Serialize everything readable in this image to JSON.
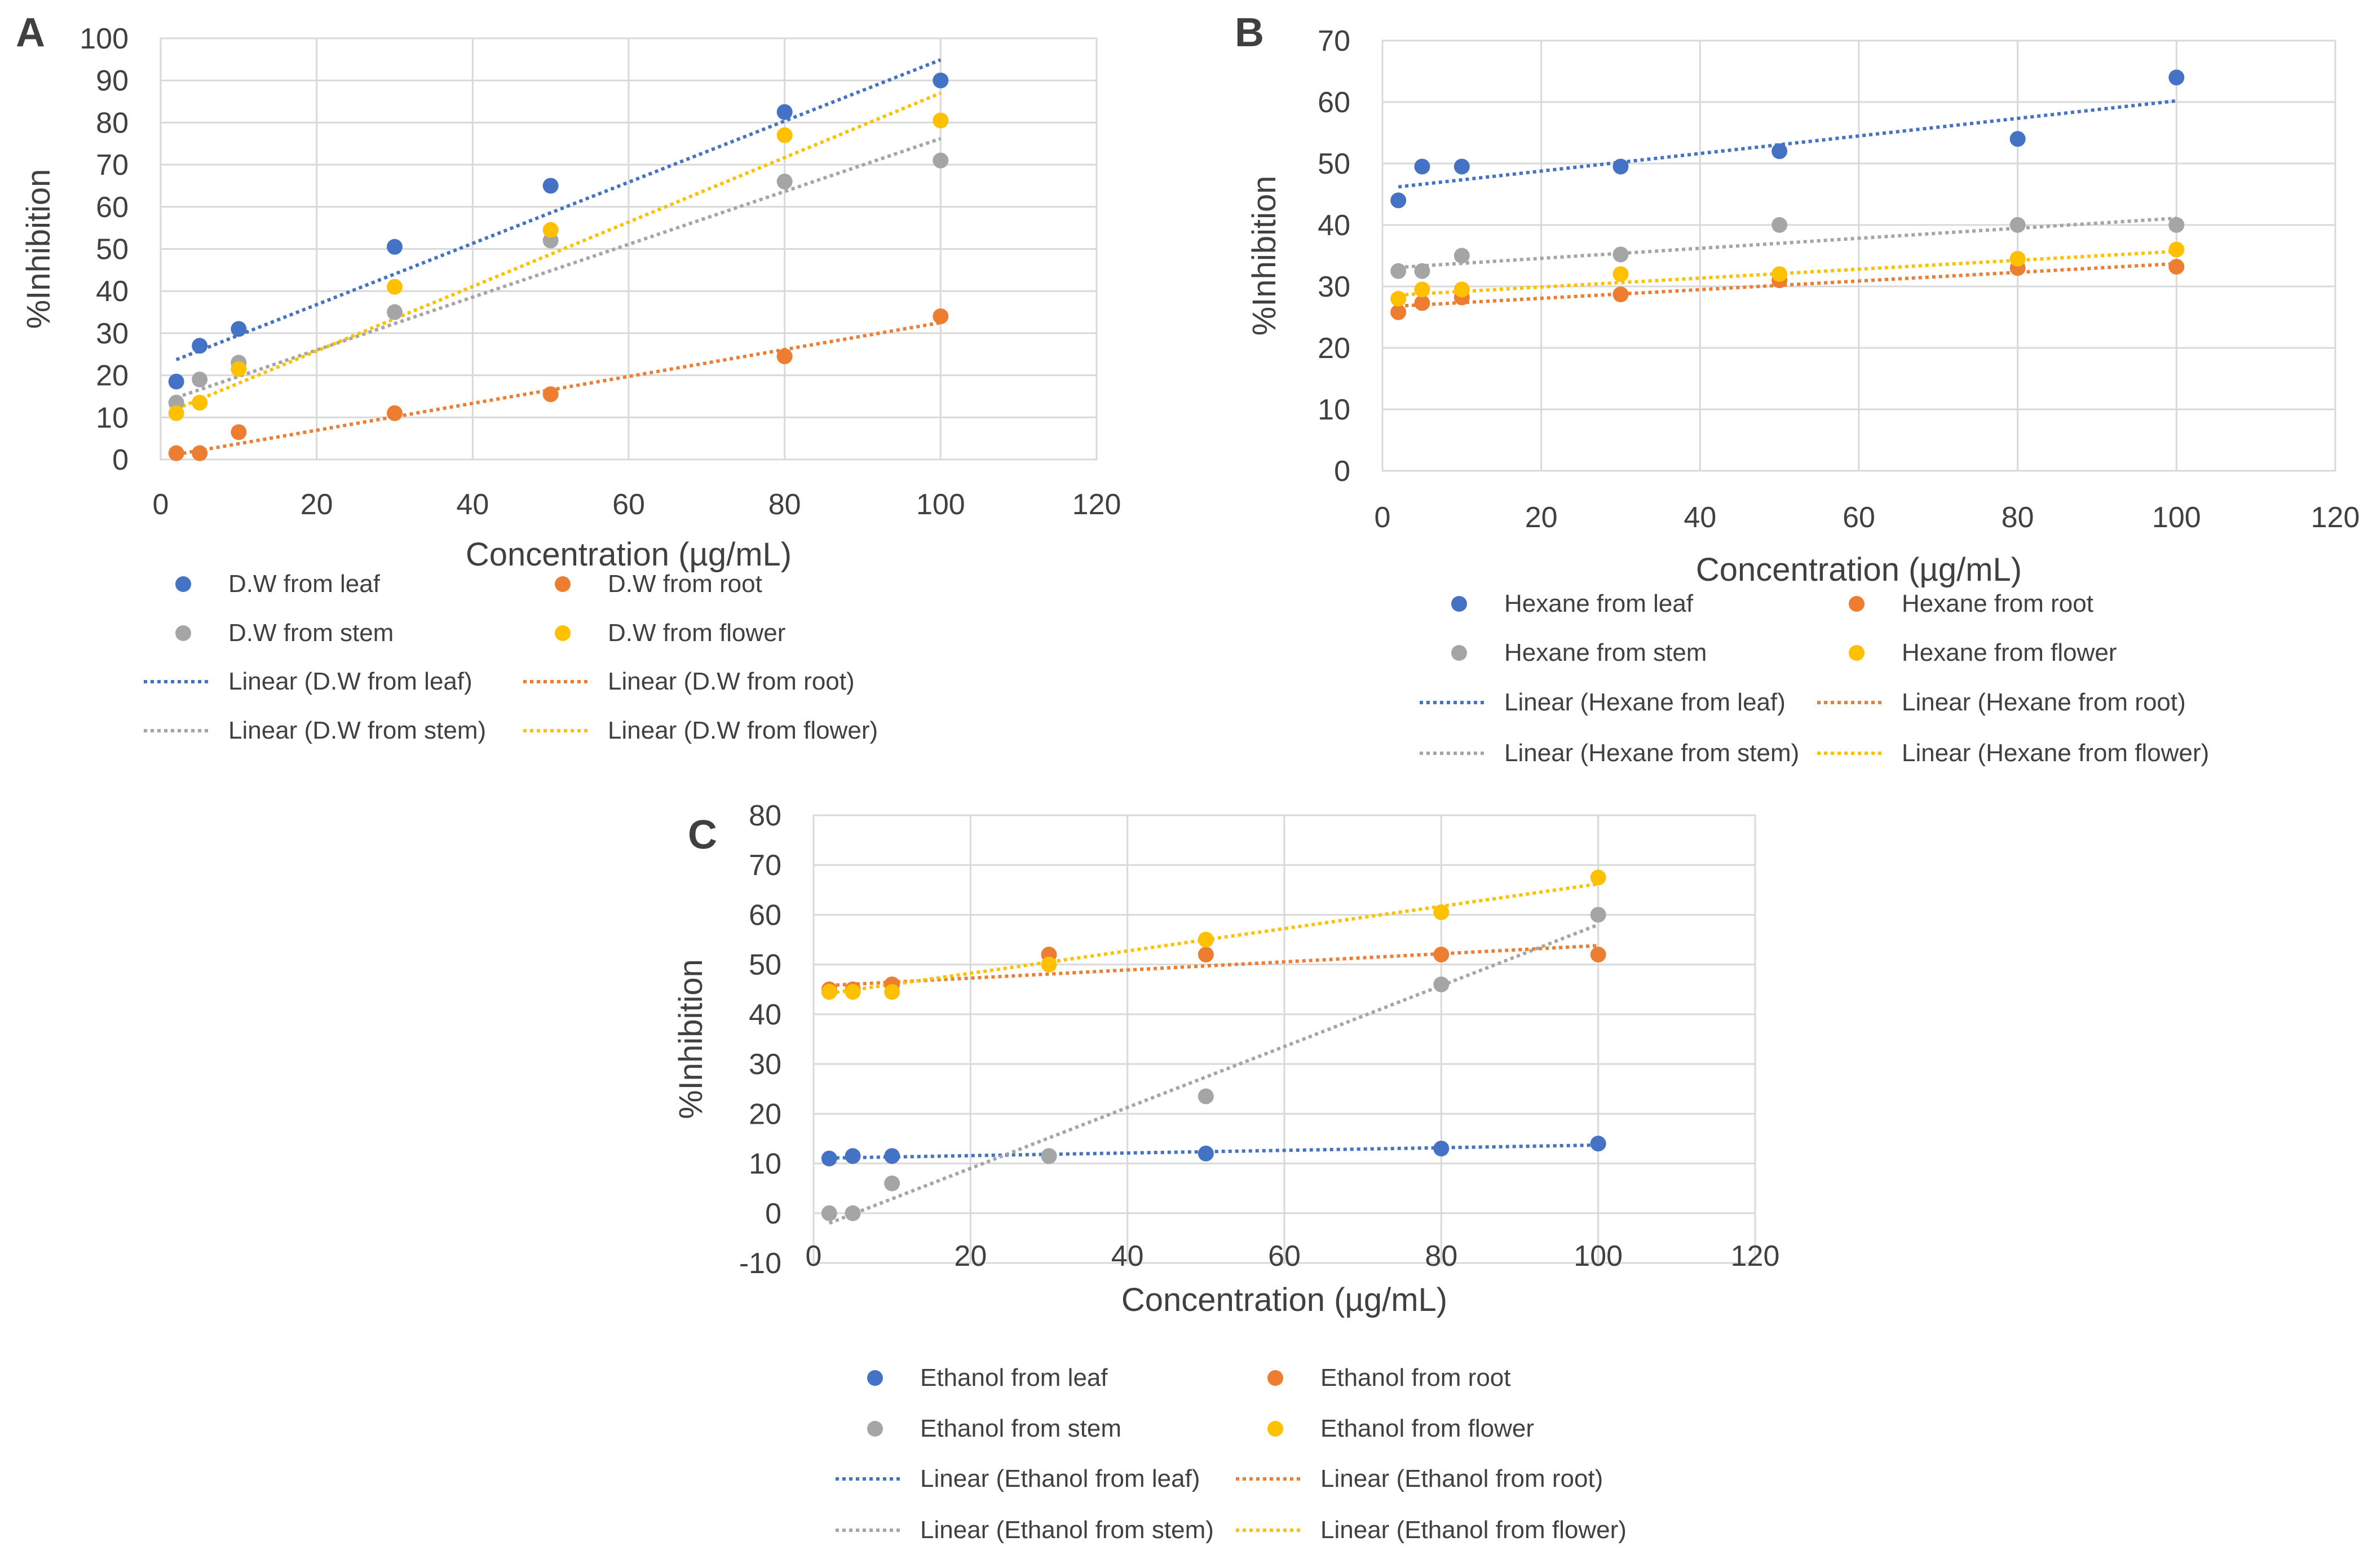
{
  "chart_data": [
    {
      "panel_label": "A",
      "type": "scatter",
      "xlabel": "Concentration (µg/mL)",
      "ylabel": "%Inhibition",
      "xlim": [
        0,
        120
      ],
      "ylim": [
        0,
        100
      ],
      "xticks": [
        0,
        20,
        40,
        60,
        80,
        100,
        120
      ],
      "yticks": [
        0,
        10,
        20,
        30,
        40,
        50,
        60,
        70,
        80,
        90,
        100
      ],
      "x": [
        2,
        5,
        10,
        30,
        50,
        80,
        100
      ],
      "grid": true,
      "series": [
        {
          "name": "D.W from leaf",
          "color": "#4472C4",
          "values": [
            18.5,
            27,
            31,
            50.5,
            65,
            82.5,
            90
          ],
          "trend": [
            23.7,
            94.9
          ],
          "trend_name": "Linear (D.W from leaf)"
        },
        {
          "name": "D.W from root",
          "color": "#ED7D31",
          "values": [
            1.5,
            1.5,
            6.5,
            11,
            15.5,
            24.5,
            34
          ],
          "trend": [
            1.2,
            32.5
          ],
          "trend_name": "Linear (D.W from root)"
        },
        {
          "name": "D.W from stem",
          "color": "#A5A5A5",
          "values": [
            13.5,
            19,
            23,
            35,
            52,
            66,
            71
          ],
          "trend": [
            14.7,
            76.2
          ],
          "trend_name": "Linear (D.W from stem)"
        },
        {
          "name": "D.W from flower",
          "color": "#FFC000",
          "values": [
            11,
            13.5,
            21.5,
            41,
            54.5,
            77,
            80.5
          ],
          "trend": [
            12.0,
            87.0
          ],
          "trend_name": "Linear (D.W from flower)"
        }
      ]
    },
    {
      "panel_label": "B",
      "type": "scatter",
      "xlabel": "Concentration (µg/mL)",
      "ylabel": "%Inhibition",
      "xlim": [
        0,
        120
      ],
      "ylim": [
        0,
        70
      ],
      "xticks": [
        0,
        20,
        40,
        60,
        80,
        100,
        120
      ],
      "yticks": [
        0,
        10,
        20,
        30,
        40,
        50,
        60,
        70
      ],
      "x": [
        2,
        5,
        10,
        30,
        50,
        80,
        100
      ],
      "grid": true,
      "series": [
        {
          "name": "Hexane from leaf",
          "color": "#4472C4",
          "values": [
            44,
            49.5,
            49.5,
            49.5,
            52,
            54,
            64
          ],
          "trend": [
            46.2,
            60.2
          ],
          "trend_name": "Linear (Hexane from leaf)"
        },
        {
          "name": "Hexane from root",
          "color": "#ED7D31",
          "values": [
            25.8,
            27.3,
            28.2,
            28.7,
            31,
            33,
            33.2
          ],
          "trend": [
            26.8,
            33.7
          ],
          "trend_name": "Linear (Hexane from root)"
        },
        {
          "name": "Hexane from stem",
          "color": "#A5A5A5",
          "values": [
            32.5,
            32.5,
            35,
            35.2,
            40,
            40,
            40
          ],
          "trend": [
            33.1,
            41.1
          ],
          "trend_name": "Linear (Hexane from stem)"
        },
        {
          "name": "Hexane from flower",
          "color": "#FFC000",
          "values": [
            28,
            29.5,
            29.5,
            32,
            32,
            34.5,
            36
          ],
          "trend": [
            28.6,
            35.7
          ],
          "trend_name": "Linear (Hexane from flower)"
        }
      ]
    },
    {
      "panel_label": "C",
      "type": "scatter",
      "xlabel": "Concentration (µg/mL)",
      "ylabel": "%Inhibition",
      "xlim": [
        0,
        120
      ],
      "ylim": [
        -10,
        80
      ],
      "xticks": [
        0,
        20,
        40,
        60,
        80,
        100,
        120
      ],
      "yticks": [
        -10,
        0,
        10,
        20,
        30,
        40,
        50,
        60,
        70,
        80
      ],
      "x": [
        2,
        5,
        10,
        30,
        50,
        80,
        100
      ],
      "grid": true,
      "series": [
        {
          "name": "Ethanol from leaf",
          "color": "#4472C4",
          "values": [
            11,
            11.5,
            11.5,
            11.5,
            12,
            13,
            14
          ],
          "trend": [
            11.1,
            13.7
          ],
          "trend_name": "Linear (Ethanol from leaf)"
        },
        {
          "name": "Ethanol from root",
          "color": "#ED7D31",
          "values": [
            45,
            45,
            46,
            52,
            52,
            52,
            52
          ],
          "trend": [
            45.8,
            53.8
          ],
          "trend_name": "Linear (Ethanol from root)"
        },
        {
          "name": "Ethanol from stem",
          "color": "#A5A5A5",
          "values": [
            0,
            0,
            6,
            11.5,
            23.5,
            46,
            60
          ],
          "trend": [
            -2,
            58
          ],
          "trend_name": "Linear (Ethanol from stem)"
        },
        {
          "name": "Ethanol from flower",
          "color": "#FFC000",
          "values": [
            44.5,
            44.5,
            44.5,
            50,
            55,
            60.5,
            67.5
          ],
          "trend": [
            44.2,
            66.2
          ],
          "trend_name": "Linear (Ethanol from flower)"
        }
      ]
    }
  ]
}
